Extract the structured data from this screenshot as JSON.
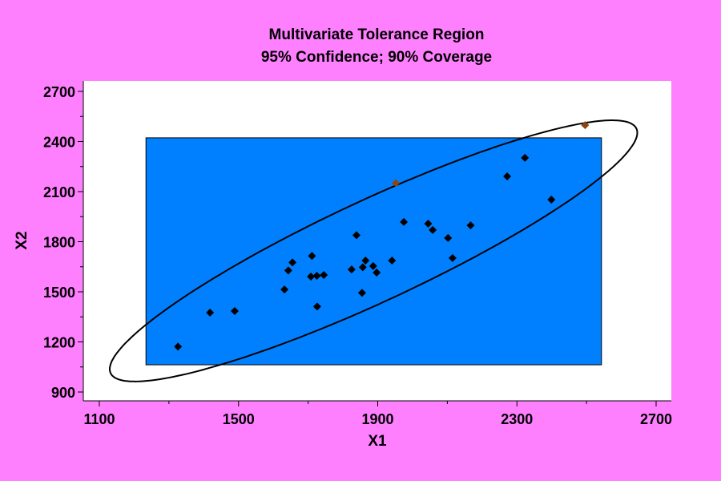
{
  "chart_data": {
    "type": "scatter",
    "title": "Multivariate Tolerance Region",
    "subtitle": "95% Confidence; 90% Coverage",
    "xlabel": "X1",
    "ylabel": "X2",
    "xlim": [
      1050,
      2750
    ],
    "ylim": [
      860,
      2780
    ],
    "xticks": [
      1100,
      1500,
      1900,
      2300,
      2700
    ],
    "yticks": [
      900,
      1200,
      1500,
      1800,
      2100,
      2400,
      2700
    ],
    "xminor": [
      1300,
      1700,
      2100,
      2500
    ],
    "yminor": [
      1050,
      1350,
      1650,
      1950,
      2250,
      2550
    ],
    "grid": false,
    "colors": {
      "background": "#FF80FF",
      "plot": "#FFFFFF",
      "region": "#0080FF",
      "point": "#000000",
      "outlier": "#8B4513"
    },
    "tolerance_rectangle": {
      "x": [
        1234,
        2543
      ],
      "y": [
        1063,
        2422
      ]
    },
    "tolerance_ellipse": {
      "center": [
        1888,
        1745
      ],
      "x_half_range": 758,
      "y_half_range": 782,
      "phase": 0.44
    },
    "points": [
      [
        1326,
        1172
      ],
      [
        1418,
        1375
      ],
      [
        1489,
        1385
      ],
      [
        1632,
        1514
      ],
      [
        1643,
        1628
      ],
      [
        1655,
        1676
      ],
      [
        1711,
        1715
      ],
      [
        1708,
        1591
      ],
      [
        1725,
        1596
      ],
      [
        1745,
        1601
      ],
      [
        1726,
        1412
      ],
      [
        1839,
        1839
      ],
      [
        1825,
        1634
      ],
      [
        1855,
        1494
      ],
      [
        1857,
        1647
      ],
      [
        1865,
        1687
      ],
      [
        1887,
        1654
      ],
      [
        1897,
        1615
      ],
      [
        1941,
        1687
      ],
      [
        1975,
        1918
      ],
      [
        2045,
        1908
      ],
      [
        2058,
        1870
      ],
      [
        2102,
        1822
      ],
      [
        2115,
        1702
      ],
      [
        2167,
        1898
      ],
      [
        2272,
        2191
      ],
      [
        2323,
        2302
      ],
      [
        2399,
        2052
      ]
    ],
    "outliers": [
      [
        1952,
        2151
      ],
      [
        2496,
        2498
      ]
    ]
  }
}
